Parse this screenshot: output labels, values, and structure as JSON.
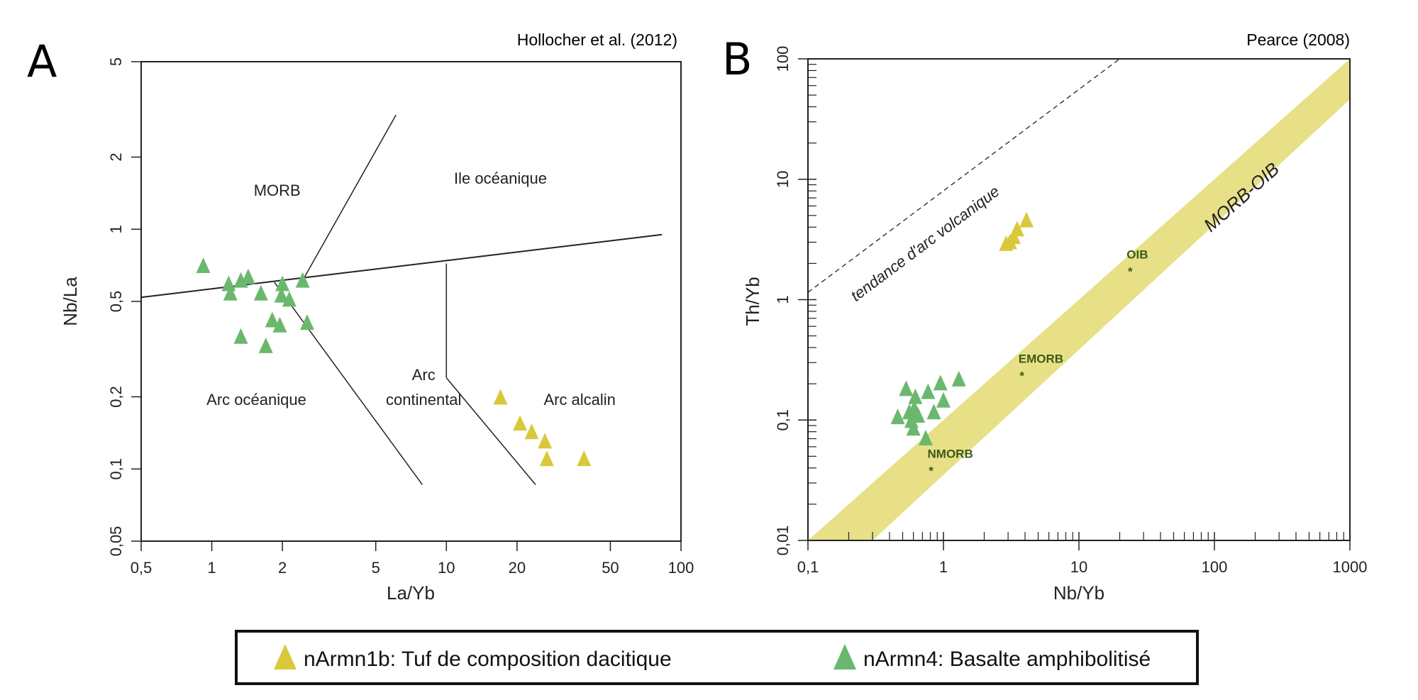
{
  "colors": {
    "yellow_marker": "#d9c93a",
    "green_marker": "#6ab86e",
    "band_fill": "#e8e087",
    "ref_label": "#3a5a1a",
    "frame": "#222222"
  },
  "legend": {
    "items": [
      {
        "label": "nArmn1b: Tuf de composition dacitique",
        "color": "#d9c93a",
        "marker": "triangle"
      },
      {
        "label": "nArmn4: Basalte amphibolitisé",
        "color": "#6ab86e",
        "marker": "triangle"
      }
    ]
  },
  "chart_data": [
    {
      "panel": "A",
      "type": "scatter",
      "title": "Hollocher et al. (2012)",
      "xlabel": "La/Yb",
      "ylabel": "Nb/La",
      "xscale": "log",
      "yscale": "log",
      "xlim": [
        0.5,
        100
      ],
      "ylim": [
        0.05,
        5
      ],
      "xticks": [
        0.5,
        1,
        2,
        5,
        10,
        20,
        50,
        100
      ],
      "xtick_labels": [
        "0,5",
        "1",
        "2",
        "5",
        "10",
        "20",
        "50",
        "100"
      ],
      "yticks": [
        0.05,
        0.1,
        0.2,
        0.5,
        1,
        2,
        5
      ],
      "ytick_labels": [
        "0,05",
        "0,1",
        "0,2",
        "0,5",
        "1",
        "2",
        "5"
      ],
      "grid": false,
      "field_lines": [
        {
          "name": "morb-oib-arc-divide",
          "points": [
            [
              0.5,
              0.52
            ],
            [
              83,
              0.95
            ]
          ]
        },
        {
          "name": "morb-oib-divide",
          "points": [
            [
              2.46,
              0.62
            ],
            [
              6.1,
              3.0
            ]
          ]
        },
        {
          "name": "oceanic-continental-arc-divide",
          "points": [
            [
              1.85,
              0.6
            ],
            [
              7.9,
              0.086
            ]
          ]
        },
        {
          "name": "oib-alkaline-divide-vertical",
          "points": [
            [
              10,
              0.72
            ],
            [
              10,
              0.24
            ]
          ]
        },
        {
          "name": "continental-alkaline-arc-divide",
          "points": [
            [
              10,
              0.24
            ],
            [
              24,
              0.086
            ]
          ]
        }
      ],
      "field_labels": [
        {
          "text": "MORB",
          "x": 1.9,
          "y": 1.38
        },
        {
          "text": "Ile océanique",
          "x": 17,
          "y": 1.55
        },
        {
          "text": "Arc océanique",
          "x": 1.55,
          "y": 0.185
        },
        {
          "text": "Arc",
          "x": 8.0,
          "y": 0.235
        },
        {
          "text": "continental",
          "x": 8.0,
          "y": 0.185
        },
        {
          "text": "Arc alcalin",
          "x": 37,
          "y": 0.185
        }
      ],
      "series": [
        {
          "name": "nArmn1b: Tuf de composition dacitique",
          "color": "#d9c93a",
          "points": [
            [
              17.0,
              0.195
            ],
            [
              20.6,
              0.152
            ],
            [
              23.1,
              0.14
            ],
            [
              26.3,
              0.128
            ],
            [
              26.8,
              0.108
            ],
            [
              38.6,
              0.108
            ]
          ]
        },
        {
          "name": "nArmn4: Basalte amphibolitisé",
          "color": "#6ab86e",
          "points": [
            [
              0.92,
              0.69
            ],
            [
              1.18,
              0.58
            ],
            [
              1.33,
              0.6
            ],
            [
              1.43,
              0.62
            ],
            [
              2.0,
              0.58
            ],
            [
              2.44,
              0.6
            ],
            [
              1.2,
              0.53
            ],
            [
              1.62,
              0.53
            ],
            [
              1.98,
              0.52
            ],
            [
              2.14,
              0.5
            ],
            [
              1.81,
              0.41
            ],
            [
              1.95,
              0.39
            ],
            [
              2.55,
              0.4
            ],
            [
              1.33,
              0.35
            ],
            [
              1.7,
              0.32
            ]
          ]
        }
      ]
    },
    {
      "panel": "B",
      "type": "scatter",
      "title": "Pearce (2008)",
      "xlabel": "Nb/Yb",
      "ylabel": "Th/Yb",
      "xscale": "log",
      "yscale": "log",
      "xlim": [
        0.1,
        1000
      ],
      "ylim": [
        0.01,
        100
      ],
      "xticks": [
        0.1,
        1,
        10,
        100,
        1000
      ],
      "xtick_labels": [
        "0,1",
        "1",
        "10",
        "100",
        "1000"
      ],
      "yticks": [
        0.01,
        0.1,
        1,
        10,
        100
      ],
      "ytick_labels": [
        "0,01",
        "0,1",
        "1",
        "10",
        "100"
      ],
      "grid": false,
      "band": {
        "label": "MORB-OIB",
        "upper_edge": [
          [
            0.1,
            0.01
          ],
          [
            1000,
            100
          ]
        ],
        "lower_edge": [
          [
            0.3,
            0.01
          ],
          [
            1000,
            46
          ]
        ]
      },
      "trend_line": {
        "label": "tendance d'arc volcanique",
        "style": "dashed",
        "points": [
          [
            0.1,
            1.15
          ],
          [
            20,
            100
          ]
        ]
      },
      "reference_points": [
        {
          "label": "NMORB",
          "x": 0.81,
          "y": 0.039
        },
        {
          "label": "EMORB",
          "x": 3.8,
          "y": 0.24
        },
        {
          "label": "OIB",
          "x": 23.9,
          "y": 1.77
        }
      ],
      "series": [
        {
          "name": "nArmn1b: Tuf de composition dacitique",
          "color": "#d9c93a",
          "points": [
            [
              2.9,
              2.8
            ],
            [
              3.1,
              2.9
            ],
            [
              3.3,
              3.2
            ],
            [
              3.5,
              3.7
            ],
            [
              4.1,
              4.4
            ]
          ]
        },
        {
          "name": "nArmn4: Basalte amphibolitisé",
          "color": "#6ab86e",
          "points": [
            [
              0.53,
              0.175
            ],
            [
              0.62,
              0.15
            ],
            [
              0.77,
              0.165
            ],
            [
              0.95,
              0.195
            ],
            [
              1.3,
              0.21
            ],
            [
              0.61,
              0.12
            ],
            [
              0.65,
              0.105
            ],
            [
              0.46,
              0.102
            ],
            [
              0.56,
              0.112
            ],
            [
              0.58,
              0.095
            ],
            [
              0.6,
              0.082
            ],
            [
              0.85,
              0.112
            ],
            [
              1.0,
              0.14
            ],
            [
              0.74,
              0.068
            ]
          ]
        }
      ]
    }
  ],
  "panels": {
    "A": {
      "letter": "A",
      "reference": "Hollocher et al. (2012)"
    },
    "B": {
      "letter": "B",
      "reference": "Pearce (2008)"
    }
  }
}
